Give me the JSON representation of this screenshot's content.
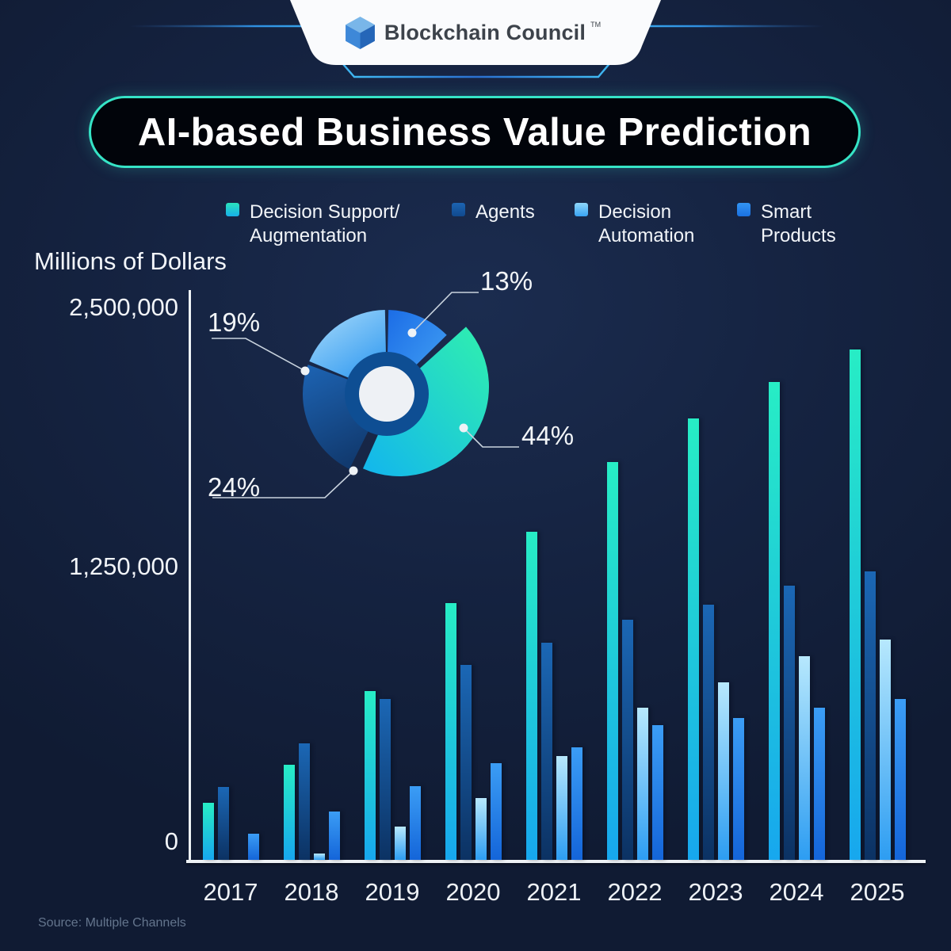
{
  "header": {
    "brand": "Blockchain Council",
    "trademark": "TM"
  },
  "title": "AI-based Business Value Prediction",
  "legend": [
    {
      "line1": "Decision Support/",
      "line2": "Augmentation",
      "swatch_from": "#2be2bd",
      "swatch_to": "#17b0e9"
    },
    {
      "line1": "Agents",
      "line2": "",
      "swatch_from": "#1c64b2",
      "swatch_to": "#114a8e"
    },
    {
      "line1": "Decision",
      "line2": "Automation",
      "swatch_from": "#8fd6fa",
      "swatch_to": "#38a3f3"
    },
    {
      "line1": "Smart",
      "line2": "Products",
      "swatch_from": "#3394f2",
      "swatch_to": "#1a71e2"
    }
  ],
  "y_axis": {
    "label": "Millions of Dollars",
    "ticks": [
      "2,500,000",
      "1,250,000",
      "0"
    ]
  },
  "source": "Source: Multiple Channels",
  "chart_data": {
    "type": "bar",
    "title": "AI-based Business Value Prediction",
    "ylabel": "Millions of Dollars",
    "ylim": [
      0,
      2500000
    ],
    "grid": false,
    "legend_position": "top",
    "categories": [
      "2017",
      "2018",
      "2019",
      "2020",
      "2021",
      "2022",
      "2023",
      "2024",
      "2025"
    ],
    "series": [
      {
        "name": "Decision Support/Augmentation",
        "color_top": "#27edc5",
        "color_bottom": "#17a7ee",
        "values": [
          260000,
          430000,
          765000,
          1165000,
          1490000,
          1805000,
          2005000,
          2170000,
          2315000
        ]
      },
      {
        "name": "Agents",
        "color_top": "#1b67b5",
        "color_bottom": "#0c3263",
        "values": [
          330000,
          530000,
          730000,
          885000,
          985000,
          1090000,
          1160000,
          1245000,
          1310000
        ]
      },
      {
        "name": "Decision Automation",
        "color_top": "#b7e8fd",
        "color_bottom": "#2d9df2",
        "values": [
          0,
          30000,
          150000,
          280000,
          470000,
          690000,
          805000,
          925000,
          1000000
        ]
      },
      {
        "name": "Smart Products",
        "color_top": "#3b9df5",
        "color_bottom": "#1465d9",
        "values": [
          120000,
          220000,
          335000,
          440000,
          510000,
          610000,
          645000,
          690000,
          730000
        ]
      }
    ],
    "donut": {
      "type": "pie",
      "slices": [
        {
          "label": "Smart Products",
          "pct": 13,
          "pct_label": "13%",
          "color_from": "#1b6ce6",
          "color_to": "#46a6f5",
          "exploded": false
        },
        {
          "label": "Decision Support/Augmentation",
          "pct": 44,
          "pct_label": "44%",
          "color_from": "#30f0ae",
          "color_to": "#12b5ee",
          "exploded": true
        },
        {
          "label": "Agents",
          "pct": 24,
          "pct_label": "24%",
          "color_from": "#1d64b4",
          "color_to": "#113a6f",
          "exploded": false
        },
        {
          "label": "Decision Automation",
          "pct": 19,
          "pct_label": "19%",
          "color_from": "#aadcfb",
          "color_to": "#2e98f0",
          "exploded": false
        }
      ]
    }
  }
}
